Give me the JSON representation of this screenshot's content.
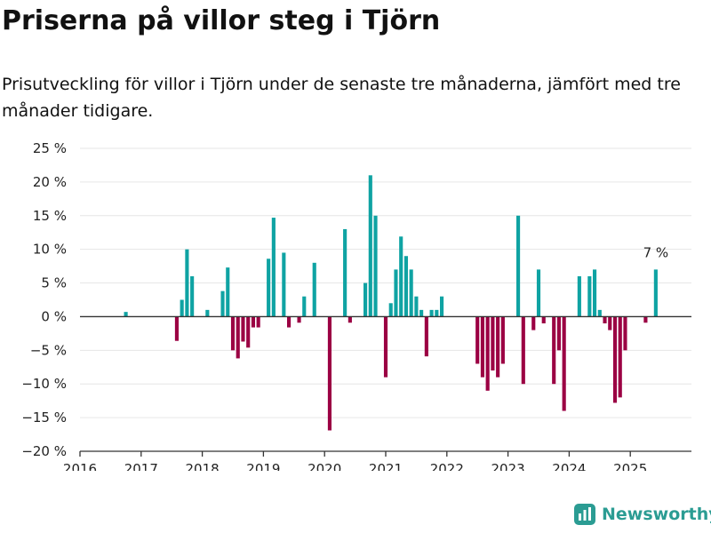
{
  "header": {
    "title": "Priserna på villor steg i Tjörn",
    "subtitle": "Prisutveckling för villor i Tjörn under de senaste tre månaderna, jämfört med tre månader tidigare."
  },
  "brand": {
    "name": "Newsworthy",
    "icon": "newsworthy-logo-icon"
  },
  "colors": {
    "positive": "#0fa3a3",
    "negative": "#9b0043",
    "grid": "#e6e6e6",
    "zero_line": "#333333"
  },
  "chart_data": {
    "type": "bar",
    "ylabel": "",
    "xlabel": "",
    "ylim": [
      -20,
      25
    ],
    "y_ticks": [
      25,
      20,
      15,
      10,
      5,
      0,
      -5,
      -10,
      -15,
      -20
    ],
    "y_tick_labels": [
      "25 %",
      "20 %",
      "15 %",
      "10 %",
      "5 %",
      "0 %",
      "−5 %",
      "−10 %",
      "−15 %",
      "−20 %"
    ],
    "x_range": [
      "2016-01-01",
      "2026-01-01"
    ],
    "x_ticks": [
      "2016",
      "2017",
      "2018",
      "2019",
      "2020",
      "2021",
      "2022",
      "2023",
      "2024",
      "2025"
    ],
    "grid": "horizontal",
    "annotation": {
      "x": "2025-06",
      "text": "7 %"
    },
    "series": [
      {
        "points": [
          {
            "x": "2016-10",
            "y": 0.7
          },
          {
            "x": "2017-08",
            "y": -3.6
          },
          {
            "x": "2017-09",
            "y": 2.5
          },
          {
            "x": "2017-10",
            "y": 10.0
          },
          {
            "x": "2017-11",
            "y": 6.0
          },
          {
            "x": "2018-02",
            "y": 1.0
          },
          {
            "x": "2018-05",
            "y": 3.8
          },
          {
            "x": "2018-06",
            "y": 7.3
          },
          {
            "x": "2018-07",
            "y": -5.0
          },
          {
            "x": "2018-08",
            "y": -6.2
          },
          {
            "x": "2018-09",
            "y": -3.7
          },
          {
            "x": "2018-10",
            "y": -4.6
          },
          {
            "x": "2018-11",
            "y": -1.6
          },
          {
            "x": "2018-12",
            "y": -1.6
          },
          {
            "x": "2019-02",
            "y": 8.6
          },
          {
            "x": "2019-03",
            "y": 14.7
          },
          {
            "x": "2019-05",
            "y": 9.5
          },
          {
            "x": "2019-06",
            "y": -1.6
          },
          {
            "x": "2019-08",
            "y": -0.9
          },
          {
            "x": "2019-09",
            "y": 3.0
          },
          {
            "x": "2019-11",
            "y": 8.0
          },
          {
            "x": "2020-02",
            "y": -16.9
          },
          {
            "x": "2020-05",
            "y": 13.0
          },
          {
            "x": "2020-06",
            "y": -0.9
          },
          {
            "x": "2020-09",
            "y": 5.0
          },
          {
            "x": "2020-10",
            "y": 21.0
          },
          {
            "x": "2020-11",
            "y": 15.0
          },
          {
            "x": "2021-01",
            "y": -9.0
          },
          {
            "x": "2021-02",
            "y": 2.0
          },
          {
            "x": "2021-03",
            "y": 7.0
          },
          {
            "x": "2021-04",
            "y": 11.9
          },
          {
            "x": "2021-05",
            "y": 9.0
          },
          {
            "x": "2021-06",
            "y": 7.0
          },
          {
            "x": "2021-07",
            "y": 3.0
          },
          {
            "x": "2021-08",
            "y": 1.0
          },
          {
            "x": "2021-09",
            "y": -5.9
          },
          {
            "x": "2021-10",
            "y": 1.0
          },
          {
            "x": "2021-11",
            "y": 1.0
          },
          {
            "x": "2021-12",
            "y": 3.0
          },
          {
            "x": "2022-07",
            "y": -7.0
          },
          {
            "x": "2022-08",
            "y": -9.0
          },
          {
            "x": "2022-09",
            "y": -11.0
          },
          {
            "x": "2022-10",
            "y": -8.0
          },
          {
            "x": "2022-11",
            "y": -9.0
          },
          {
            "x": "2022-12",
            "y": -7.0
          },
          {
            "x": "2023-03",
            "y": 15.0
          },
          {
            "x": "2023-04",
            "y": -10.0
          },
          {
            "x": "2023-06",
            "y": -2.0
          },
          {
            "x": "2023-07",
            "y": 7.0
          },
          {
            "x": "2023-08",
            "y": -1.0
          },
          {
            "x": "2023-10",
            "y": -10.0
          },
          {
            "x": "2023-11",
            "y": -5.0
          },
          {
            "x": "2023-12",
            "y": -14.0
          },
          {
            "x": "2024-03",
            "y": 6.0
          },
          {
            "x": "2024-05",
            "y": 6.0
          },
          {
            "x": "2024-06",
            "y": 7.0
          },
          {
            "x": "2024-07",
            "y": 1.0
          },
          {
            "x": "2024-08",
            "y": -1.0
          },
          {
            "x": "2024-09",
            "y": -2.0
          },
          {
            "x": "2024-10",
            "y": -12.8
          },
          {
            "x": "2024-11",
            "y": -12.0
          },
          {
            "x": "2024-12",
            "y": -5.0
          },
          {
            "x": "2025-04",
            "y": -0.9
          },
          {
            "x": "2025-06",
            "y": 7.0
          }
        ]
      }
    ]
  }
}
